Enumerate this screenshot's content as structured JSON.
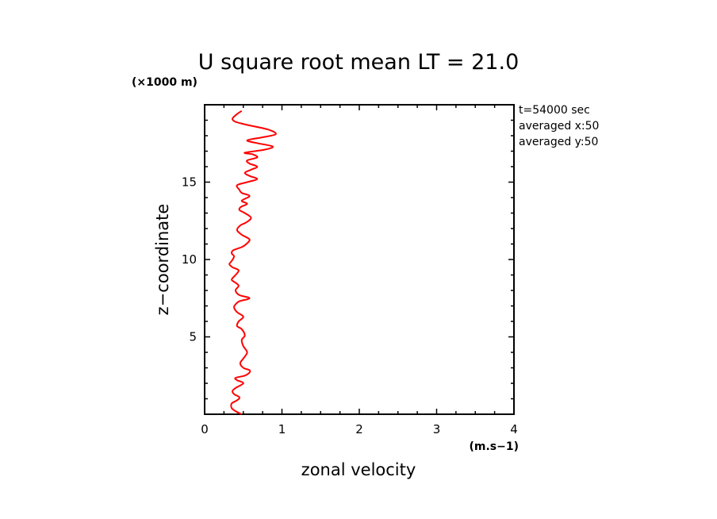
{
  "chart_data": {
    "type": "line",
    "title": "U square root mean LT = 21.0",
    "xlabel": "zonal velocity",
    "ylabel": "z−coordinate",
    "x_unit": "(m.s−1)",
    "y_unit": "(×1000 m)",
    "xlim": [
      0,
      4
    ],
    "ylim": [
      0,
      20
    ],
    "x_ticks": [
      "0",
      "1",
      "2",
      "3",
      "4"
    ],
    "y_ticks": [
      "5",
      "10",
      "15"
    ],
    "series": [
      {
        "color": "#ff0000",
        "points": [
          [
            0.48,
            0.0
          ],
          [
            0.4,
            0.2
          ],
          [
            0.35,
            0.4
          ],
          [
            0.35,
            0.7
          ],
          [
            0.42,
            0.9
          ],
          [
            0.45,
            1.1
          ],
          [
            0.38,
            1.3
          ],
          [
            0.36,
            1.5
          ],
          [
            0.4,
            1.7
          ],
          [
            0.5,
            2.0
          ],
          [
            0.42,
            2.2
          ],
          [
            0.4,
            2.35
          ],
          [
            0.52,
            2.5
          ],
          [
            0.58,
            2.7
          ],
          [
            0.58,
            2.85
          ],
          [
            0.5,
            3.0
          ],
          [
            0.46,
            3.3
          ],
          [
            0.5,
            3.6
          ],
          [
            0.55,
            4.0
          ],
          [
            0.5,
            4.4
          ],
          [
            0.48,
            4.8
          ],
          [
            0.52,
            5.1
          ],
          [
            0.48,
            5.5
          ],
          [
            0.42,
            5.7
          ],
          [
            0.44,
            6.0
          ],
          [
            0.5,
            6.3
          ],
          [
            0.42,
            6.6
          ],
          [
            0.38,
            6.9
          ],
          [
            0.4,
            7.1
          ],
          [
            0.45,
            7.3
          ],
          [
            0.58,
            7.5
          ],
          [
            0.45,
            7.7
          ],
          [
            0.4,
            8.0
          ],
          [
            0.44,
            8.3
          ],
          [
            0.4,
            8.5
          ],
          [
            0.35,
            8.7
          ],
          [
            0.4,
            9.0
          ],
          [
            0.44,
            9.3
          ],
          [
            0.36,
            9.5
          ],
          [
            0.32,
            9.7
          ],
          [
            0.35,
            9.9
          ],
          [
            0.38,
            10.2
          ],
          [
            0.35,
            10.4
          ],
          [
            0.37,
            10.6
          ],
          [
            0.48,
            10.8
          ],
          [
            0.54,
            11.0
          ],
          [
            0.58,
            11.3
          ],
          [
            0.48,
            11.6
          ],
          [
            0.42,
            11.9
          ],
          [
            0.46,
            12.2
          ],
          [
            0.54,
            12.4
          ],
          [
            0.6,
            12.7
          ],
          [
            0.52,
            13.0
          ],
          [
            0.45,
            13.2
          ],
          [
            0.47,
            13.4
          ],
          [
            0.55,
            13.6
          ],
          [
            0.48,
            13.8
          ],
          [
            0.58,
            14.1
          ],
          [
            0.48,
            14.3
          ],
          [
            0.45,
            14.5
          ],
          [
            0.42,
            14.8
          ],
          [
            0.55,
            15.0
          ],
          [
            0.68,
            15.2
          ],
          [
            0.58,
            15.4
          ],
          [
            0.52,
            15.6
          ],
          [
            0.6,
            15.8
          ],
          [
            0.68,
            16.0
          ],
          [
            0.58,
            16.2
          ],
          [
            0.55,
            16.4
          ],
          [
            0.68,
            16.6
          ],
          [
            0.62,
            16.8
          ],
          [
            0.52,
            16.9
          ],
          [
            0.78,
            17.1
          ],
          [
            0.88,
            17.3
          ],
          [
            0.7,
            17.5
          ],
          [
            0.55,
            17.7
          ],
          [
            0.75,
            17.9
          ],
          [
            0.92,
            18.1
          ],
          [
            0.82,
            18.4
          ],
          [
            0.55,
            18.7
          ],
          [
            0.4,
            18.9
          ],
          [
            0.36,
            19.1
          ],
          [
            0.42,
            19.4
          ],
          [
            0.48,
            19.6
          ]
        ]
      }
    ],
    "grid": false,
    "legend": "none"
  },
  "info_box": {
    "line1": "t=54000 sec",
    "line2": "averaged  x:50",
    "line3": "averaged  y:50"
  }
}
